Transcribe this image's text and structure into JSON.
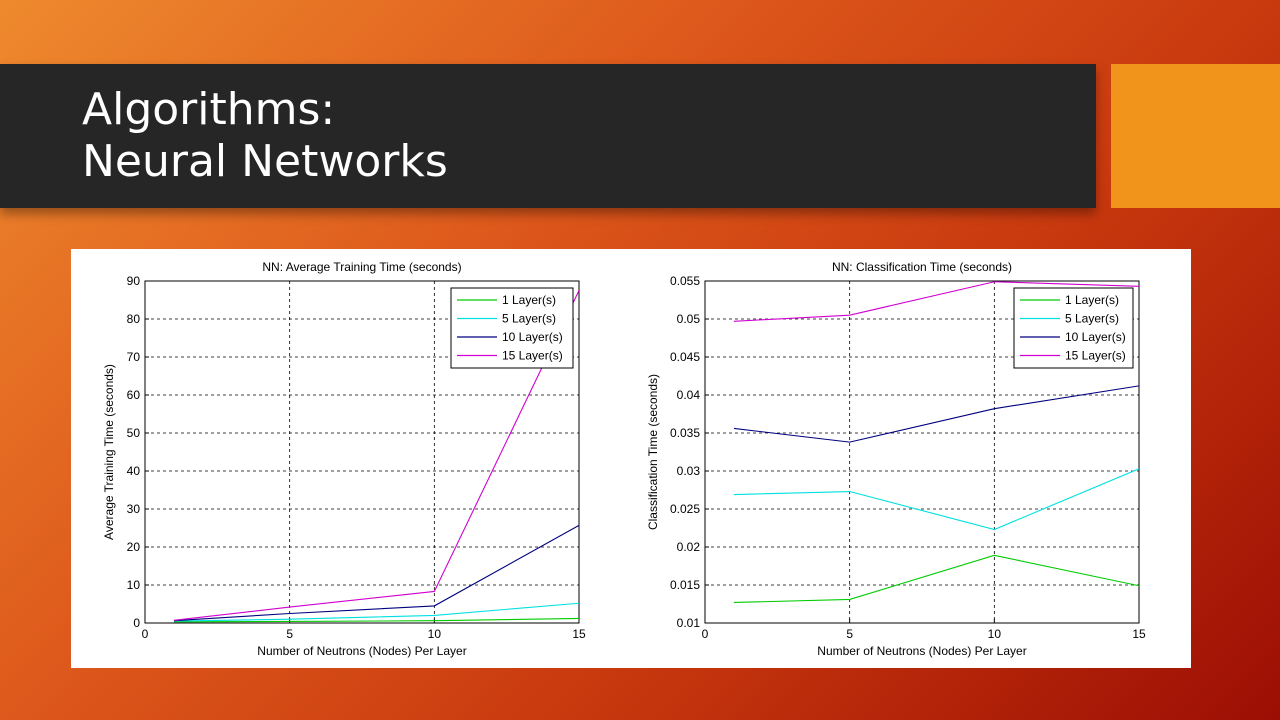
{
  "slide": {
    "title_line1": "Algorithms:",
    "title_line2": "Neural Networks"
  },
  "colors": {
    "title_bar": "#262626",
    "accent": "#f0941c",
    "series": [
      "#00cc00",
      "#00e0e0",
      "#00007f",
      "#d000d0"
    ]
  },
  "chart_data": [
    {
      "type": "line",
      "title": "NN: Average Training Time (seconds)",
      "xlabel": "Number of Neutrons (Nodes) Per Layer",
      "ylabel": "Average Training Time (seconds)",
      "xlim": [
        0,
        15
      ],
      "ylim": [
        0,
        90
      ],
      "xticks": [
        0,
        5,
        10,
        15
      ],
      "yticks": [
        0,
        10,
        20,
        30,
        40,
        50,
        60,
        70,
        80,
        90
      ],
      "ytick_labels": [
        "0",
        "10",
        "20",
        "30",
        "40",
        "50",
        "60",
        "70",
        "80",
        "90"
      ],
      "grid": true,
      "legend": "top-right",
      "x": [
        1,
        5,
        10,
        15
      ],
      "series": [
        {
          "name": "1 Layer(s)",
          "values": [
            0.3,
            0.4,
            0.6,
            1.2
          ]
        },
        {
          "name": "5 Layer(s)",
          "values": [
            0.5,
            1.0,
            2.0,
            5.2
          ]
        },
        {
          "name": "10 Layer(s)",
          "values": [
            0.6,
            2.5,
            4.5,
            25.7
          ]
        },
        {
          "name": "15 Layer(s)",
          "values": [
            0.7,
            4.2,
            8.3,
            87.5
          ]
        }
      ]
    },
    {
      "type": "line",
      "title": "NN: Classification Time (seconds)",
      "xlabel": "Number of Neutrons (Nodes) Per Layer",
      "ylabel": "Classification Time (seconds)",
      "xlim": [
        0,
        15
      ],
      "ylim": [
        0.01,
        0.055
      ],
      "xticks": [
        0,
        5,
        10,
        15
      ],
      "yticks": [
        0.01,
        0.015,
        0.02,
        0.025,
        0.03,
        0.035,
        0.04,
        0.045,
        0.05,
        0.055
      ],
      "ytick_labels": [
        "0.01",
        "0.015",
        "0.02",
        "0.025",
        "0.03",
        "0.035",
        "0.04",
        "0.045",
        "0.05",
        "0.055"
      ],
      "grid": true,
      "legend": "top-right",
      "x": [
        1,
        5,
        10,
        15
      ],
      "series": [
        {
          "name": "1 Layer(s)",
          "values": [
            0.0127,
            0.0131,
            0.0189,
            0.0149
          ]
        },
        {
          "name": "5 Layer(s)",
          "values": [
            0.0269,
            0.0273,
            0.0223,
            0.0303
          ]
        },
        {
          "name": "10 Layer(s)",
          "values": [
            0.0356,
            0.0338,
            0.0382,
            0.0412
          ]
        },
        {
          "name": "15 Layer(s)",
          "values": [
            0.0497,
            0.0505,
            0.0549,
            0.0543
          ]
        }
      ]
    }
  ]
}
